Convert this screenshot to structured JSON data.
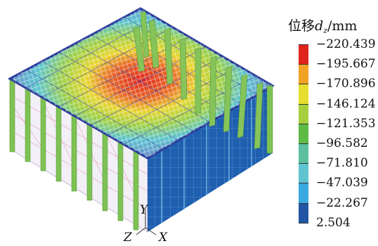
{
  "legend": {
    "title_prefix": "位移",
    "title_symbol": "d",
    "title_subscript": "z",
    "title_unit": "/mm",
    "ticks": [
      "−220.439",
      "−195.667",
      "−170.896",
      "−146.124",
      "−121.353",
      "−96.582",
      "−71.810",
      "−47.039",
      "−22.267",
      "2.504"
    ],
    "colors": [
      "#e0241c",
      "#f0a224",
      "#e6de30",
      "#a6cf3d",
      "#5dbb46",
      "#5bbfa0",
      "#5fc4cf",
      "#39a9e0",
      "#2255a4"
    ]
  },
  "axes": {
    "y": "Y",
    "z": "Z",
    "x": "X"
  }
}
